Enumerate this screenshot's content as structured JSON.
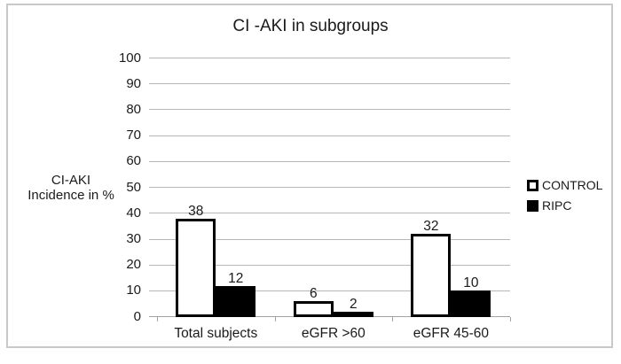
{
  "chart_data": {
    "type": "bar",
    "title": "CI -AKI in subgroups",
    "categories": [
      "Total subjects",
      "eGFR >60",
      "eGFR 45-60"
    ],
    "series": [
      {
        "name": "CONTROL",
        "values": [
          38,
          6,
          32
        ],
        "fill": "#ffffff"
      },
      {
        "name": "RIPC",
        "values": [
          12,
          2,
          10
        ],
        "fill": "#000000"
      }
    ],
    "ylabel_lines": [
      "CI-AKI",
      "Incidence in %"
    ],
    "ylim": [
      0,
      100
    ],
    "ytick_step": 10,
    "yticks": [
      0,
      10,
      20,
      30,
      40,
      50,
      60,
      70,
      80,
      90,
      100
    ],
    "grid": true,
    "bar_value_labels_shown": true,
    "legend_position": "right",
    "legend": [
      "CONTROL",
      "RIPC"
    ]
  },
  "colors": {
    "control_fill": "#ffffff",
    "ripc_fill": "#000000",
    "bar_outline": "#000000",
    "gridline": "#b7b7b7",
    "axis_line": "#a3a3a3",
    "frame_border": "#c9c9c9",
    "text": "#1a1a1a"
  }
}
